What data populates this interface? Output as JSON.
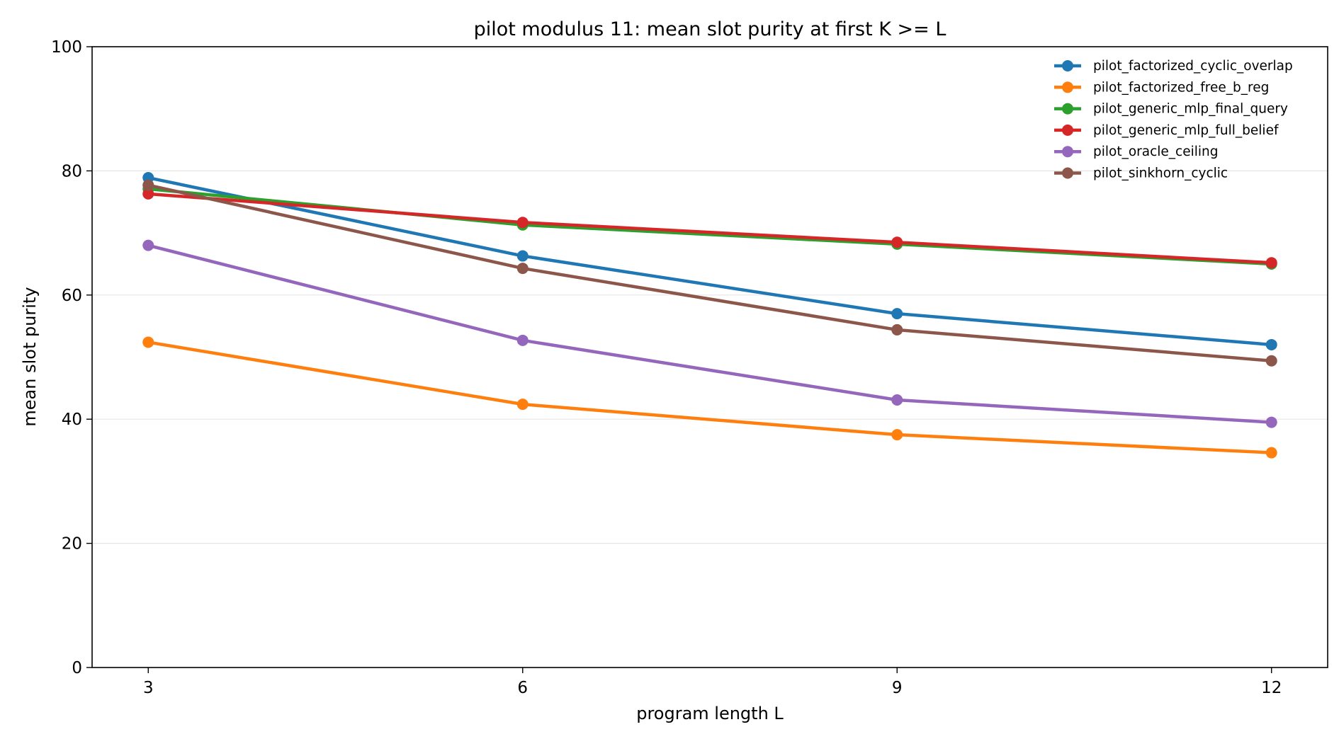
{
  "chart_data": {
    "type": "line",
    "title": "pilot modulus 11: mean slot purity at first K >= L",
    "xlabel": "program length L",
    "ylabel": "mean slot purity",
    "x": [
      3,
      6,
      9,
      12
    ],
    "xticks": [
      "3",
      "6",
      "9",
      "12"
    ],
    "xlim": [
      2.55,
      12.45
    ],
    "ylim": [
      0,
      100
    ],
    "yticks": [
      "0",
      "20",
      "40",
      "60",
      "80",
      "100"
    ],
    "grid": "horizontal",
    "legend_position": "top-right",
    "series": [
      {
        "name": "pilot_factorized_cyclic_overlap",
        "color": "#1f77b4",
        "values": [
          78.9,
          66.3,
          57.0,
          52.0
        ]
      },
      {
        "name": "pilot_factorized_free_b_reg",
        "color": "#ff7f0e",
        "values": [
          52.4,
          42.4,
          37.5,
          34.6
        ]
      },
      {
        "name": "pilot_generic_mlp_final_query",
        "color": "#2ca02c",
        "values": [
          77.1,
          71.3,
          68.2,
          65.0
        ]
      },
      {
        "name": "pilot_generic_mlp_full_belief",
        "color": "#d62728",
        "values": [
          76.3,
          71.7,
          68.5,
          65.2
        ]
      },
      {
        "name": "pilot_oracle_ceiling",
        "color": "#9467bd",
        "values": [
          68.0,
          52.7,
          43.1,
          39.5
        ]
      },
      {
        "name": "pilot_sinkhorn_cyclic",
        "color": "#8c564b",
        "values": [
          77.7,
          64.3,
          54.4,
          49.4
        ]
      }
    ]
  }
}
